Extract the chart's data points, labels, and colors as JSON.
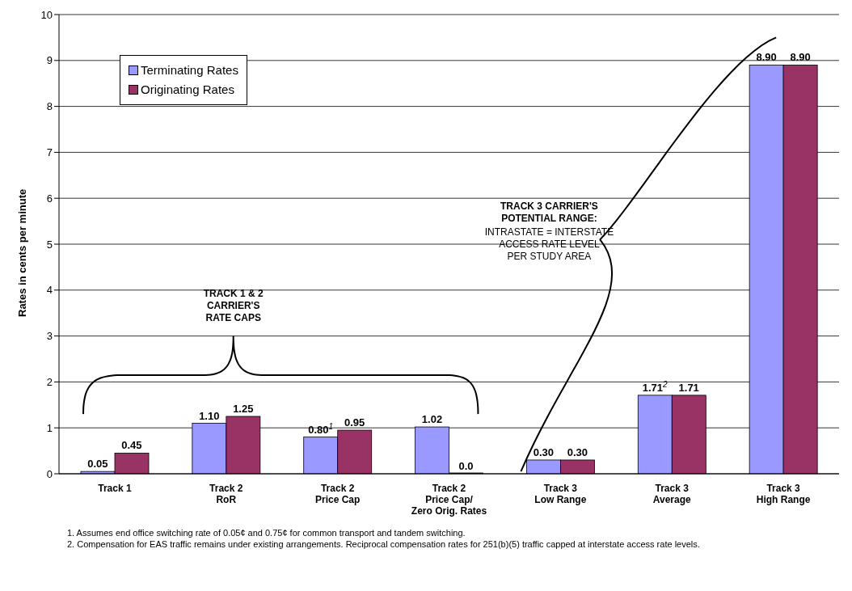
{
  "chart_data": {
    "type": "bar",
    "ylabel": "Rates in cents per minute",
    "categories": [
      "Track 1",
      "Track 2\nRoR",
      "Track 2\nPrice Cap",
      "Track 2\nPrice Cap/\nZero Orig. Rates",
      "Track 3\nLow Range",
      "Track 3\nAverage",
      "Track 3\nHigh Range"
    ],
    "series": [
      {
        "name": "Terminating Rates",
        "color": "#9999ff",
        "values": [
          0.05,
          1.1,
          0.8,
          1.02,
          0.3,
          1.71,
          8.9
        ],
        "value_labels": [
          "0.05",
          "1.10",
          "0.80$^{1}$",
          "1.02",
          "0.30",
          "1.71$^{2}$",
          "8.90"
        ]
      },
      {
        "name": "Originating Rates",
        "color": "#993366",
        "values": [
          0.45,
          1.25,
          0.95,
          0.0,
          0.3,
          1.71,
          8.9
        ],
        "value_labels": [
          "0.45",
          "1.25",
          "0.95",
          "0.0",
          "0.30",
          "1.71",
          "8.90"
        ]
      }
    ],
    "ylim": [
      0,
      10
    ],
    "yticks": [
      0,
      1,
      2,
      3,
      4,
      5,
      6,
      7,
      8,
      9,
      10
    ],
    "grid": "y",
    "legend": "top left",
    "annotations": [
      "TRACK 1 & 2\nCARRIER'S\nRATE CAPS",
      "TRACK 3 CARRIER'S\nPOTENTIAL RANGE:",
      "INTRASTATE = INTERSTATE\nACCESS RATE LEVEL\nPER STUDY AREA",
      "1. Assumes end office switching rate of 0.05¢ and 0.75¢ for common transport and tandem switching.",
      "2. Compensation for EAS traffic remains under existing arrangements. Reciprocal compensation rates for 251(b)(5) traffic capped at interstate access rate levels."
    ]
  }
}
